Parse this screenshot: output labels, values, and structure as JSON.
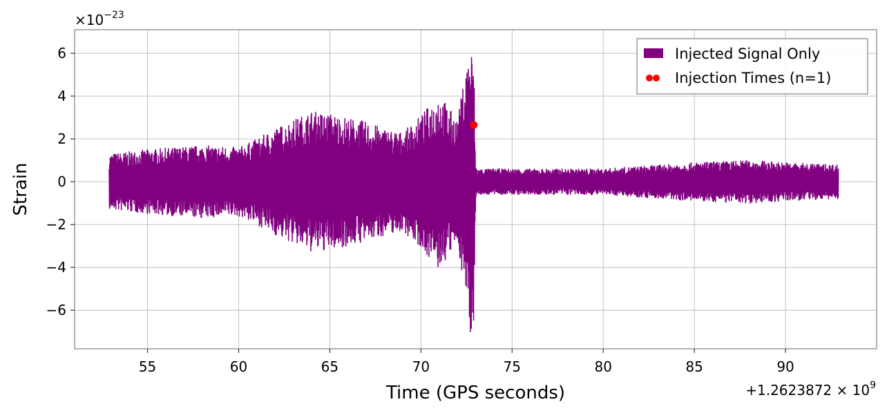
{
  "chart_data": {
    "type": "line",
    "title": "",
    "xlabel": "Time (GPS seconds)",
    "ylabel": "Strain",
    "x_offset_label": "+1.2623872 × 10",
    "x_offset_exp": "9",
    "y_scale_label": "×10",
    "y_scale_exp": "−23",
    "xlim": [
      51,
      95
    ],
    "ylim": [
      -7.8,
      7.1
    ],
    "x_ticks": [
      55,
      60,
      65,
      70,
      75,
      80,
      85,
      90
    ],
    "x_tick_labels": [
      "55",
      "60",
      "65",
      "70",
      "75",
      "80",
      "85",
      "90"
    ],
    "y_ticks": [
      -6,
      -4,
      -2,
      0,
      2,
      4,
      6
    ],
    "y_tick_labels": [
      "−6",
      "−4",
      "−2",
      "0",
      "2",
      "4",
      "6"
    ],
    "grid": true,
    "legend_position": "top-right",
    "series": [
      {
        "name": "Injected Signal Only",
        "color": "#800080",
        "style": "filled-strain-band",
        "x_range": [
          52.9,
          92.9
        ],
        "envelope": {
          "x": [
            52.9,
            55,
            58,
            60,
            61,
            62,
            63,
            64,
            65,
            66,
            67,
            68,
            69,
            70,
            70.5,
            71,
            71.5,
            72,
            72.5,
            72.7,
            72.9,
            73.0,
            73.1,
            75,
            80,
            85,
            88,
            90,
            92.9
          ],
          "upper": [
            1.3,
            1.5,
            1.7,
            1.6,
            2.0,
            2.5,
            2.9,
            3.3,
            3.2,
            3.0,
            2.8,
            2.5,
            2.3,
            3.1,
            3.6,
            4.2,
            3.5,
            2.9,
            5.5,
            6.4,
            5.8,
            0.8,
            0.6,
            0.6,
            0.6,
            0.9,
            1.0,
            0.9,
            0.8
          ],
          "lower": [
            -1.3,
            -1.5,
            -1.7,
            -1.6,
            -2.0,
            -2.5,
            -2.9,
            -3.3,
            -3.2,
            -3.0,
            -2.8,
            -2.5,
            -2.3,
            -3.1,
            -3.6,
            -4.2,
            -3.5,
            -2.9,
            -5.5,
            -7.2,
            -6.5,
            -0.8,
            -0.6,
            -0.6,
            -0.6,
            -0.9,
            -1.0,
            -0.9,
            -0.8
          ]
        }
      },
      {
        "name": "Injection Times (n=1)",
        "color": "#ff0000",
        "style": "points",
        "points": [
          {
            "x": 72.9,
            "y": 2.65
          }
        ]
      }
    ]
  }
}
